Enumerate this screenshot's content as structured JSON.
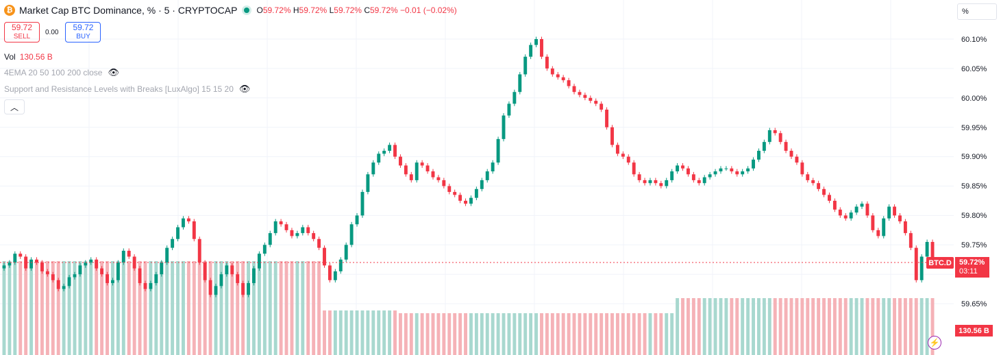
{
  "header": {
    "logo_letter": "₿",
    "title": "Market Cap BTC Dominance, % · 5 · CRYPTOCAP",
    "ohlc": {
      "o_label": "O",
      "o": "59.72%",
      "h_label": "H",
      "h": "59.72%",
      "l_label": "L",
      "l": "59.72%",
      "c_label": "C",
      "c": "59.72%",
      "change": "−0.01 (−0.02%)"
    }
  },
  "trade": {
    "sell_price": "59.72",
    "sell_label": "SELL",
    "spread": "0.00",
    "buy_price": "59.72",
    "buy_label": "BUY"
  },
  "volume": {
    "label": "Vol",
    "value": "130.56 B"
  },
  "indicators": [
    "4EMA 20 50 100 200 close",
    "Support and Resistance Levels with Breaks [LuxAlgo] 15 15 20"
  ],
  "scale_button": "%",
  "price_axis": {
    "ticks": [
      "60.10%",
      "60.05%",
      "60.00%",
      "59.95%",
      "59.90%",
      "59.85%",
      "59.80%",
      "59.75%",
      "59.70%",
      "59.65%"
    ]
  },
  "last_price_tag": {
    "symbol": "BTC.D",
    "price": "59.72%",
    "countdown": "03:11"
  },
  "volume_tag": "130.56 B",
  "colors": {
    "up": "#089981",
    "down": "#f23645",
    "up_volume": "#a8d8cf",
    "down_volume": "#f5b2b7",
    "grid": "#f0f3fa"
  },
  "chart_data": {
    "type": "candlestick",
    "title": "Market Cap BTC Dominance, % · 5 · CRYPTOCAP",
    "ylabel": "%",
    "ylim": [
      59.615,
      60.135
    ],
    "last_price": 59.72,
    "close_series": [
      59.715,
      59.72,
      59.735,
      59.73,
      59.71,
      59.725,
      59.72,
      59.705,
      59.7,
      59.69,
      59.675,
      59.68,
      59.695,
      59.7,
      59.715,
      59.72,
      59.725,
      59.71,
      59.7,
      59.685,
      59.69,
      59.72,
      59.74,
      59.73,
      59.71,
      59.685,
      59.675,
      59.685,
      59.7,
      59.72,
      59.745,
      59.76,
      59.78,
      59.795,
      59.79,
      59.76,
      59.72,
      59.69,
      59.665,
      59.68,
      59.7,
      59.715,
      59.7,
      59.685,
      59.665,
      59.685,
      59.71,
      59.735,
      59.75,
      59.77,
      59.79,
      59.785,
      59.775,
      59.765,
      59.77,
      59.78,
      59.77,
      59.76,
      59.745,
      59.715,
      59.69,
      59.705,
      59.725,
      59.75,
      59.785,
      59.8,
      59.84,
      59.87,
      59.89,
      59.905,
      59.91,
      59.92,
      59.9,
      59.885,
      59.87,
      59.86,
      59.89,
      59.885,
      59.875,
      59.865,
      59.86,
      59.85,
      59.84,
      59.835,
      59.825,
      59.82,
      59.83,
      59.845,
      59.86,
      59.875,
      59.89,
      59.93,
      59.97,
      59.99,
      60.01,
      60.04,
      60.07,
      60.09,
      60.1,
      60.07,
      60.05,
      60.04,
      60.035,
      60.03,
      60.02,
      60.01,
      60.005,
      60.0,
      59.995,
      59.99,
      59.98,
      59.95,
      59.92,
      59.905,
      59.9,
      59.89,
      59.87,
      59.86,
      59.855,
      59.86,
      59.855,
      59.85,
      59.86,
      59.875,
      59.885,
      59.88,
      59.87,
      59.86,
      59.855,
      59.865,
      59.87,
      59.875,
      59.88,
      59.88,
      59.875,
      59.87,
      59.875,
      59.88,
      59.895,
      59.91,
      59.925,
      59.945,
      59.94,
      59.925,
      59.91,
      59.9,
      59.89,
      59.87,
      59.86,
      59.855,
      59.845,
      59.835,
      59.825,
      59.81,
      59.8,
      59.795,
      59.805,
      59.815,
      59.82,
      59.8,
      59.775,
      59.765,
      59.795,
      59.815,
      59.8,
      59.79,
      59.77,
      59.745,
      59.69,
      59.73,
      59.755,
      59.72
    ]
  }
}
